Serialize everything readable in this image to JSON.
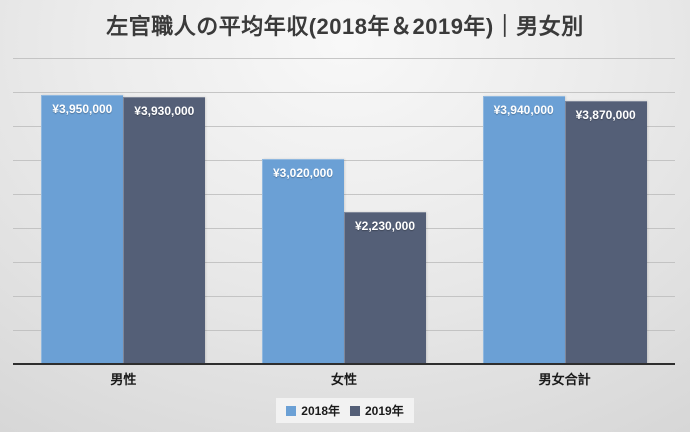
{
  "title": "左官職人の平均年収(2018年＆2019年)｜男女別",
  "chart_data": {
    "type": "bar",
    "title": "左官職人の平均年収(2018年＆2019年)｜男女別",
    "categories": [
      "男性",
      "女性",
      "男女合計"
    ],
    "series": [
      {
        "name": "2018年",
        "color": "#6ba0d5",
        "values": [
          3950000,
          3020000,
          3940000
        ],
        "labels": [
          "¥3,950,000",
          "¥3,020,000",
          "¥3,940,000"
        ]
      },
      {
        "name": "2019年",
        "color": "#545f77",
        "values": [
          3930000,
          2230000,
          3870000
        ],
        "labels": [
          "¥3,930,000",
          "¥2,230,000",
          "¥3,870,000"
        ]
      }
    ],
    "xlabel": "",
    "ylabel": "",
    "ylim": [
      0,
      4500000
    ],
    "gridline_interval": 500000,
    "grid": true,
    "y_axis_labels_visible": false,
    "legend_position": "bottom"
  },
  "colors": {
    "series_2018": "#6ba0d5",
    "series_2019": "#545f77",
    "gridline": "#bdbdbd",
    "axis_line": "#2e2e2e",
    "title_text": "#3a3a3a",
    "bar_label_text": "#ffffff",
    "legend_background": "#f2f2f2"
  }
}
